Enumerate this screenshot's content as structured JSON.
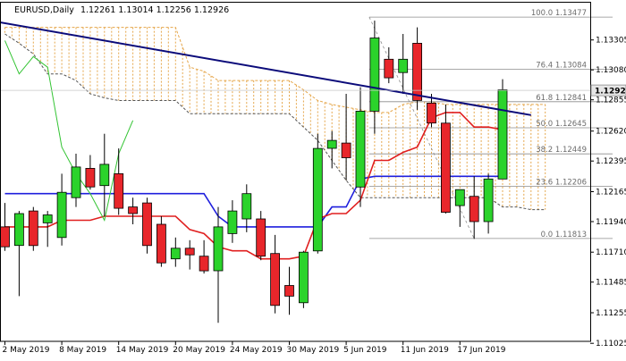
{
  "header": {
    "title": "EURUSD,Daily",
    "ohlc_text": "1.12261 1.13014 1.12256 1.12926"
  },
  "colors": {
    "bull": "#2bd32b",
    "bear": "#e8262b",
    "candle_outline": "#000000",
    "tenkan": "#e01f1f",
    "kijun": "#1f1fdd",
    "senkou_a": "#e5a64a",
    "senkou_b": "#555555",
    "chikou": "#33c433",
    "trendline": "#0b0b7a",
    "fib": "#8c8c8c",
    "price_box": "#e6e6e6"
  },
  "chart_data": {
    "type": "candlestick",
    "title": "EURUSD,Daily",
    "symbol": "EURUSD",
    "timeframe": "Daily",
    "ylim": [
      1.1104,
      1.13585
    ],
    "y_ticks": [
      "1.13305",
      "1.13080",
      "1.12855",
      "1.12620",
      "1.12395",
      "1.12165",
      "1.11940",
      "1.11710",
      "1.11485",
      "1.11255",
      "1.11025"
    ],
    "x_tick_labels": [
      {
        "index": 0,
        "label": "2 May 2019"
      },
      {
        "index": 4,
        "label": "8 May 2019"
      },
      {
        "index": 8,
        "label": "14 May 2019"
      },
      {
        "index": 12,
        "label": "20 May 2019"
      },
      {
        "index": 16,
        "label": "24 May 2019"
      },
      {
        "index": 20,
        "label": "30 May 2019"
      },
      {
        "index": 24,
        "label": "5 Jun 2019"
      },
      {
        "index": 28,
        "label": "11 Jun 2019"
      },
      {
        "index": 32,
        "label": "17 Jun 2019"
      }
    ],
    "current_price": "1.12926",
    "candles": [
      {
        "o": 1.119,
        "h": 1.1208,
        "l": 1.1172,
        "c": 1.1175
      },
      {
        "o": 1.1176,
        "h": 1.1202,
        "l": 1.1138,
        "c": 1.12
      },
      {
        "o": 1.1202,
        "h": 1.1205,
        "l": 1.1172,
        "c": 1.1176
      },
      {
        "o": 1.1193,
        "h": 1.1202,
        "l": 1.1175,
        "c": 1.1199
      },
      {
        "o": 1.1182,
        "h": 1.123,
        "l": 1.1176,
        "c": 1.1216
      },
      {
        "o": 1.1212,
        "h": 1.1245,
        "l": 1.1205,
        "c": 1.1235
      },
      {
        "o": 1.1234,
        "h": 1.1244,
        "l": 1.1218,
        "c": 1.122
      },
      {
        "o": 1.1221,
        "h": 1.126,
        "l": 1.1198,
        "c": 1.1237
      },
      {
        "o": 1.123,
        "h": 1.1249,
        "l": 1.1199,
        "c": 1.1204
      },
      {
        "o": 1.1205,
        "h": 1.1212,
        "l": 1.1192,
        "c": 1.12
      },
      {
        "o": 1.1208,
        "h": 1.1212,
        "l": 1.117,
        "c": 1.1176
      },
      {
        "o": 1.1192,
        "h": 1.1198,
        "l": 1.116,
        "c": 1.1163
      },
      {
        "o": 1.1166,
        "h": 1.1182,
        "l": 1.116,
        "c": 1.1174
      },
      {
        "o": 1.1174,
        "h": 1.118,
        "l": 1.1158,
        "c": 1.1169
      },
      {
        "o": 1.1168,
        "h": 1.118,
        "l": 1.1155,
        "c": 1.1157
      },
      {
        "o": 1.1157,
        "h": 1.1205,
        "l": 1.1118,
        "c": 1.119
      },
      {
        "o": 1.1185,
        "h": 1.121,
        "l": 1.1178,
        "c": 1.1202
      },
      {
        "o": 1.1196,
        "h": 1.1222,
        "l": 1.1186,
        "c": 1.1215
      },
      {
        "o": 1.1196,
        "h": 1.1202,
        "l": 1.1165,
        "c": 1.1168
      },
      {
        "o": 1.117,
        "h": 1.1184,
        "l": 1.1125,
        "c": 1.1131
      },
      {
        "o": 1.1146,
        "h": 1.116,
        "l": 1.1124,
        "c": 1.1138
      },
      {
        "o": 1.1133,
        "h": 1.1172,
        "l": 1.1129,
        "c": 1.1171
      },
      {
        "o": 1.1172,
        "h": 1.126,
        "l": 1.117,
        "c": 1.1249
      },
      {
        "o": 1.1249,
        "h": 1.1262,
        "l": 1.1234,
        "c": 1.1255
      },
      {
        "o": 1.1253,
        "h": 1.129,
        "l": 1.1225,
        "c": 1.1242
      },
      {
        "o": 1.122,
        "h": 1.1295,
        "l": 1.1205,
        "c": 1.1277
      },
      {
        "o": 1.1277,
        "h": 1.1345,
        "l": 1.126,
        "c": 1.1332
      },
      {
        "o": 1.1316,
        "h": 1.1325,
        "l": 1.1298,
        "c": 1.1302
      },
      {
        "o": 1.1306,
        "h": 1.1335,
        "l": 1.129,
        "c": 1.1316
      },
      {
        "o": 1.1328,
        "h": 1.134,
        "l": 1.1278,
        "c": 1.1285
      },
      {
        "o": 1.1283,
        "h": 1.129,
        "l": 1.1265,
        "c": 1.1268
      },
      {
        "o": 1.1268,
        "h": 1.1282,
        "l": 1.12,
        "c": 1.1201
      },
      {
        "o": 1.1206,
        "h": 1.1218,
        "l": 1.119,
        "c": 1.1218
      },
      {
        "o": 1.1213,
        "h": 1.1228,
        "l": 1.1181,
        "c": 1.1194
      },
      {
        "o": 1.1194,
        "h": 1.123,
        "l": 1.1185,
        "c": 1.1226
      },
      {
        "o": 1.1226,
        "h": 1.1301,
        "l": 1.1226,
        "c": 1.1293
      }
    ],
    "tenkan": [
      1.119,
      1.119,
      1.119,
      1.119,
      1.1195,
      1.1195,
      1.1195,
      1.1198,
      1.1198,
      1.1198,
      1.1198,
      1.1198,
      1.1198,
      1.1188,
      1.1185,
      1.1175,
      1.1172,
      1.1172,
      1.1166,
      1.1166,
      1.1166,
      1.1168,
      1.1196,
      1.12,
      1.12,
      1.121,
      1.124,
      1.124,
      1.1246,
      1.125,
      1.1272,
      1.1276,
      1.1276,
      1.1265,
      1.1265,
      1.1263
    ],
    "kijun": [
      1.1215,
      1.1215,
      1.1215,
      1.1215,
      1.1215,
      1.1215,
      1.1215,
      1.1215,
      1.1215,
      1.1215,
      1.1215,
      1.1215,
      1.1215,
      1.1215,
      1.1215,
      1.1198,
      1.119,
      1.119,
      1.119,
      1.119,
      1.119,
      1.119,
      1.119,
      1.1205,
      1.1205,
      1.1226,
      1.1228,
      1.1228,
      1.1228,
      1.1228,
      1.1228,
      1.1228,
      1.1228,
      1.1228,
      1.1228,
      1.1228
    ],
    "senkou_a": [
      1.134,
      1.134,
      1.134,
      1.134,
      1.134,
      1.134,
      1.134,
      1.134,
      1.134,
      1.134,
      1.134,
      1.134,
      1.134,
      1.131,
      1.1307,
      1.13,
      1.13,
      1.13,
      1.13,
      1.13,
      1.13,
      1.1293,
      1.1285,
      1.1282,
      1.128,
      1.1278,
      1.1276,
      1.1276,
      1.1282,
      1.1284,
      1.1284,
      1.1282,
      1.1282,
      1.1282,
      1.1282,
      1.1282,
      1.1282,
      1.1282,
      1.1282
    ],
    "senkou_b": [
      1.1335,
      1.1328,
      1.132,
      1.1305,
      1.1305,
      1.13,
      1.129,
      1.1287,
      1.1285,
      1.1285,
      1.1285,
      1.1285,
      1.1285,
      1.1275,
      1.1275,
      1.1275,
      1.1275,
      1.1275,
      1.1275,
      1.1275,
      1.1275,
      1.1265,
      1.1255,
      1.124,
      1.1225,
      1.1212,
      1.1212,
      1.1212,
      1.1212,
      1.1212,
      1.1212,
      1.1212,
      1.1212,
      1.1212,
      1.1212,
      1.1205,
      1.1205,
      1.1203,
      1.1203
    ],
    "chikou": [
      1.133,
      1.1305,
      1.1318,
      1.131,
      1.125,
      1.123,
      1.1215,
      1.1195,
      1.1245,
      1.127,
      null,
      null,
      null,
      null,
      null,
      null,
      null,
      null,
      null,
      null,
      null,
      null,
      null,
      null,
      null,
      null,
      null,
      null,
      null,
      null,
      null,
      null,
      null,
      null,
      null,
      null
    ],
    "trendline": {
      "from": {
        "index": -0.5,
        "y": 1.1344
      },
      "to": {
        "index": 37,
        "y": 1.1274
      }
    },
    "fibonacci": {
      "levels": [
        {
          "label": "100.0 1.13477",
          "price": 1.13477
        },
        {
          "label": "76.4 1.13084",
          "price": 1.13084
        },
        {
          "label": "61.8 1.12841",
          "price": 1.12841
        },
        {
          "label": "50.0 1.12645",
          "price": 1.12645
        },
        {
          "label": "38.2 1.12449",
          "price": 1.12449
        },
        {
          "label": "23.6 1.12206",
          "price": 1.12206
        },
        {
          "label": "0.0 1.11813",
          "price": 1.11813
        }
      ],
      "from_index": 26,
      "to_index": 37
    }
  }
}
